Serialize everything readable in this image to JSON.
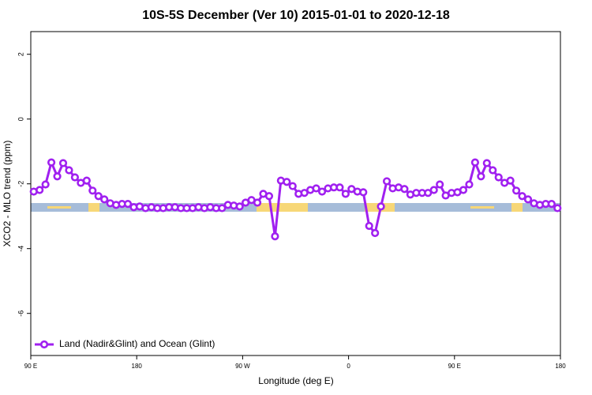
{
  "chart_data": {
    "type": "line",
    "title": "10S-5S December (Ver 10)   2015-01-01 to 2020-12-18",
    "xlabel": "Longitude (deg E)",
    "ylabel": "XCO2 - MLO trend (ppm)",
    "x": [
      92.5,
      97.5,
      102.5,
      107.5,
      112.5,
      117.5,
      122.5,
      127.5,
      132.5,
      137.5,
      142.5,
      147.5,
      152.5,
      157.5,
      162.5,
      167.5,
      172.5,
      177.5,
      182.5,
      187.5,
      192.5,
      197.5,
      202.5,
      207.5,
      212.5,
      217.5,
      222.5,
      227.5,
      232.5,
      237.5,
      242.5,
      247.5,
      252.5,
      257.5,
      262.5,
      267.5,
      272.5,
      277.5,
      282.5,
      287.5,
      292.5,
      297.5,
      302.5,
      307.5,
      312.5,
      317.5,
      322.5,
      327.5,
      332.5,
      337.5,
      342.5,
      347.5,
      352.5,
      357.5,
      362.5,
      367.5,
      372.5,
      377.5,
      382.5,
      387.5,
      392.5,
      397.5,
      402.5,
      407.5,
      412.5,
      417.5,
      422.5,
      427.5,
      432.5,
      437.5,
      442.5,
      447.5,
      452.5,
      457.5,
      462.5,
      467.5,
      472.5,
      477.5,
      482.5,
      487.5,
      492.5,
      497.5,
      502.5,
      507.5,
      512.5,
      517.5,
      522.5,
      527.5,
      532.5,
      537.5
    ],
    "series": [
      {
        "name": "Land (Nadir&Glint) and Ocean (Glint)",
        "color": "#a020f0",
        "values": [
          -2.24,
          -2.19,
          -2.02,
          -1.34,
          -1.77,
          -1.36,
          -1.58,
          -1.8,
          -1.97,
          -1.9,
          -2.21,
          -2.38,
          -2.48,
          -2.6,
          -2.65,
          -2.62,
          -2.62,
          -2.72,
          -2.7,
          -2.75,
          -2.72,
          -2.75,
          -2.75,
          -2.72,
          -2.72,
          -2.75,
          -2.75,
          -2.75,
          -2.72,
          -2.75,
          -2.72,
          -2.75,
          -2.75,
          -2.65,
          -2.67,
          -2.7,
          -2.58,
          -2.5,
          -2.58,
          -2.31,
          -2.38,
          -3.62,
          -1.9,
          -1.94,
          -2.07,
          -2.31,
          -2.28,
          -2.19,
          -2.14,
          -2.24,
          -2.14,
          -2.11,
          -2.11,
          -2.31,
          -2.16,
          -2.24,
          -2.26,
          -3.3,
          -3.52,
          -2.7,
          -1.92,
          -2.14,
          -2.11,
          -2.16,
          -2.33,
          -2.28,
          -2.28,
          -2.28,
          -2.19,
          -2.02,
          -2.36,
          -2.28,
          -2.26,
          -2.19,
          -2.02,
          -1.34,
          -1.77,
          -1.36,
          -1.58,
          -1.8,
          -1.97,
          -1.9,
          -2.21,
          -2.38,
          -2.48,
          -2.6,
          -2.65,
          -2.62,
          -2.62,
          -2.75
        ]
      }
    ],
    "xlim": [
      90,
      540
    ],
    "xticks": [
      {
        "value": 90,
        "label": "90 E"
      },
      180,
      {
        "value": 270,
        "label": "90 W"
      },
      {
        "value": 360,
        "label": "0"
      },
      {
        "value": 450,
        "label": "90 E"
      },
      {
        "value": 540,
        "label": "180"
      }
    ],
    "ylim": [
      -7.3,
      2.7
    ],
    "yticks": [
      2,
      0,
      -2,
      -4,
      -6
    ],
    "legend": "bottom-left"
  }
}
